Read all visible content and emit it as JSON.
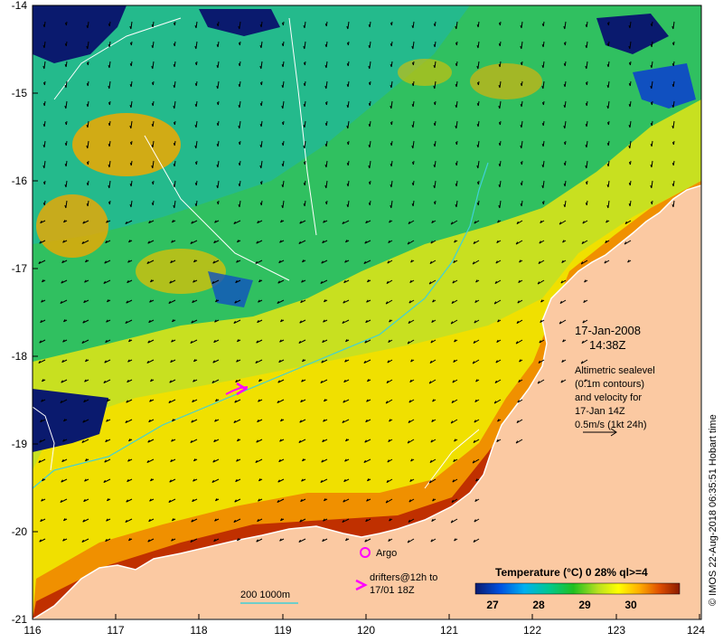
{
  "axes": {
    "x_ticks": [
      "116",
      "117",
      "118",
      "119",
      "120",
      "121",
      "122",
      "123",
      "124"
    ],
    "y_ticks": [
      "-14",
      "-15",
      "-16",
      "-17",
      "-18",
      "-19",
      "-20",
      "-21"
    ]
  },
  "annotation": {
    "date": "17-Jan-2008",
    "time": "14:38Z",
    "description_lines": [
      "Altimetric sealevel",
      "(0.1m contours)",
      "and velocity for",
      "17-Jan 14Z",
      "0.5m/s (1kt 24h)"
    ]
  },
  "legend": {
    "argo_label": "Argo",
    "drifters_line1": "drifters@12h to",
    "drifters_line2": "17/01 18Z",
    "isobath_label": "200  1000m"
  },
  "colorbar": {
    "title": "Temperature (°C) 0 28% ql>=4",
    "ticks": [
      "27",
      "28",
      "29",
      "30"
    ]
  },
  "credit": "© IMOS 22-Aug-2018 06:35:51 Hobart time",
  "colors": {
    "land": "#fbc9a2",
    "cloud": "#0a1a6e",
    "coast_warm": "#8b1a00",
    "drifter": "#ff00ff",
    "isobath": "#40d0d8"
  }
}
